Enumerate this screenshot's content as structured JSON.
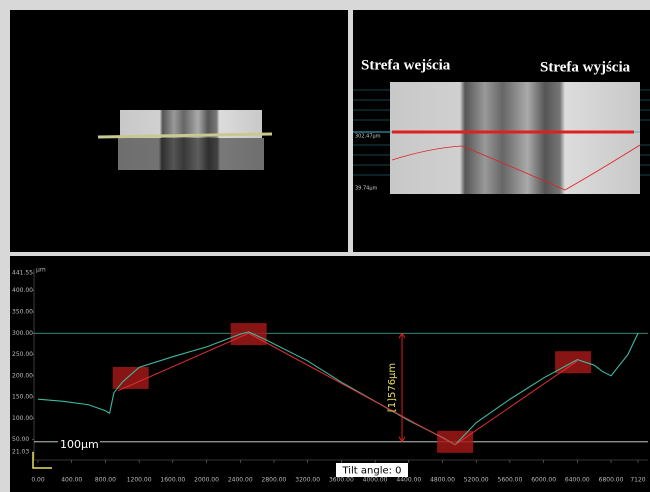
{
  "top_right": {
    "zone_left": "Strefa wejścia",
    "zone_right": "Strefa wyjścia",
    "upper_level": "302.47µm",
    "lower_level": "39.74µm"
  },
  "chart_data": {
    "type": "line",
    "unit": "µm",
    "scale_label": "100µm",
    "tilt": "Tilt angle: 0",
    "annotation": "[1]576µm",
    "xlim": [
      0,
      7120
    ],
    "ylim": [
      21.03,
      441.55
    ],
    "xticks": [
      {
        "value": 0,
        "label": "0.00"
      },
      {
        "value": 400,
        "label": "400.00"
      },
      {
        "value": 800,
        "label": "800.00"
      },
      {
        "value": 1200,
        "label": "1200.00"
      },
      {
        "value": 1600,
        "label": "1600.00"
      },
      {
        "value": 2000,
        "label": "2000.00"
      },
      {
        "value": 2400,
        "label": "2400.00"
      },
      {
        "value": 2800,
        "label": "2800.00"
      },
      {
        "value": 3200,
        "label": "3200.00"
      },
      {
        "value": 3600,
        "label": "3600.00"
      },
      {
        "value": 4000,
        "label": "4000.00"
      },
      {
        "value": 4400,
        "label": "4400.00"
      },
      {
        "value": 4800,
        "label": "4800.00"
      },
      {
        "value": 5200,
        "label": "5200.00"
      },
      {
        "value": 5600,
        "label": "5600.00"
      },
      {
        "value": 6000,
        "label": "6000.00"
      },
      {
        "value": 6400,
        "label": "6400.00"
      },
      {
        "value": 6800,
        "label": "6800.00"
      },
      7120
    ],
    "yticks": [
      21.03,
      {
        "value": 50,
        "label": "50.00"
      },
      {
        "value": 100,
        "label": "100.00"
      },
      {
        "value": 150,
        "label": "150.00"
      },
      {
        "value": 200,
        "label": "200.00"
      },
      {
        "value": 250,
        "label": "250.00"
      },
      {
        "value": 300,
        "label": "300.00"
      },
      {
        "value": 350,
        "label": "350.00"
      },
      {
        "value": 400,
        "label": "400.00"
      },
      441.55
    ],
    "reference_lines": [
      300,
      45
    ],
    "series": [
      {
        "color": "#3fb8a0",
        "x": [
          0,
          300,
          600,
          800,
          850,
          900,
          1000,
          1200,
          1600,
          2000,
          2400,
          2500,
          2700,
          3200,
          3600,
          4000,
          4400,
          4800,
          4950,
          5200,
          5600,
          6000,
          6400,
          6600,
          6700,
          6800,
          7000,
          7120
        ],
        "values": [
          145,
          140,
          132,
          118,
          112,
          160,
          185,
          220,
          245,
          268,
          298,
          303,
          285,
          235,
          185,
          140,
          95,
          55,
          38,
          90,
          145,
          195,
          238,
          225,
          210,
          200,
          250,
          300
        ]
      },
      {
        "color": "#e03030",
        "x": [
          950,
          2500,
          4950,
          6400
        ],
        "values": [
          165,
          300,
          38,
          235
        ]
      }
    ],
    "regions": {
      "color": "#a01818",
      "x": [
        1100,
        2500,
        4950,
        6350
      ],
      "values": [
        195,
        298,
        45,
        232
      ]
    }
  }
}
